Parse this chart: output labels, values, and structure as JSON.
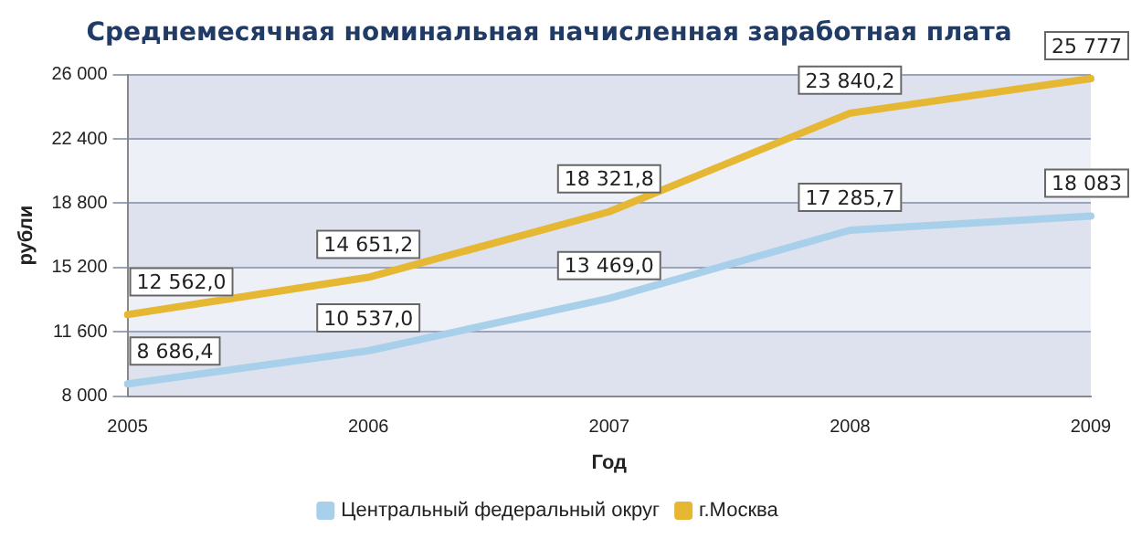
{
  "chart_data": {
    "type": "line",
    "title": "Среднемесячная номинальная начисленная заработная плата",
    "xlabel": "Год",
    "ylabel": "рубли",
    "categories": [
      "2005",
      "2006",
      "2007",
      "2008",
      "2009"
    ],
    "series": [
      {
        "name": "Центральный федеральный округ",
        "color": "#a9d0ea",
        "values": [
          8686.4,
          10537.0,
          13469.0,
          17285.7,
          18083
        ],
        "value_labels": [
          "8 686,4",
          "10 537,0",
          "13 469,0",
          "17 285,7",
          "18 083"
        ]
      },
      {
        "name": "г.Москва",
        "color": "#e6b733",
        "values": [
          12562.0,
          14651.2,
          18321.8,
          23840.2,
          25777
        ],
        "value_labels": [
          "12 562,0",
          "14 651,2",
          "18 321,8",
          "23 840,2",
          "25 777"
        ]
      }
    ],
    "ylim": [
      8000,
      26000
    ],
    "yticks": [
      {
        "value": 8000,
        "label": "8 000"
      },
      {
        "value": 11600,
        "label": "11 600"
      },
      {
        "value": 15200,
        "label": "15 200"
      },
      {
        "value": 18800,
        "label": "18 800"
      },
      {
        "value": 22400,
        "label": "22 400"
      },
      {
        "value": 26000,
        "label": "26 000"
      }
    ],
    "grid": "y",
    "legend": "bottom",
    "marker": "none",
    "line_style": "solid"
  }
}
